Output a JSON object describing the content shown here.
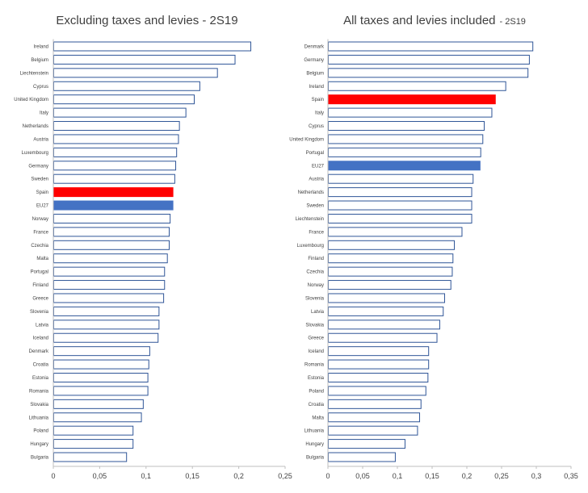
{
  "colors": {
    "default_fill": "#ffffff",
    "default_stroke": "#2f5597",
    "spain_fill": "#ff0000",
    "eu27_fill": "#4472c4",
    "axis": "#bfbfbf",
    "text": "#404040"
  },
  "chart_data": [
    {
      "type": "bar",
      "orientation": "horizontal",
      "title": "Excluding taxes and levies - 2S19",
      "subtitle": "",
      "xlabel": "",
      "ylabel": "",
      "xlim": [
        0,
        0.25
      ],
      "ticks": [
        0,
        0.05,
        0.1,
        0.15,
        0.2,
        0.25
      ],
      "tick_labels": [
        "0",
        "0,05",
        "0,1",
        "0,15",
        "0,2",
        "0,25"
      ],
      "grid": false,
      "highlights": {
        "Spain": "spain_fill",
        "EU27": "eu27_fill"
      },
      "categories": [
        "Ireland",
        "Belgium",
        "Liechtenstein",
        "Cyprus",
        "United Kingdom",
        "Italy",
        "Netherlands",
        "Austria",
        "Luxembourg",
        "Germany",
        "Sweden",
        "Spain",
        "EU27",
        "Norway",
        "France",
        "Czechia",
        "Malta",
        "Portugal",
        "Finland",
        "Greece",
        "Slovenia",
        "Latvia",
        "Iceland",
        "Denmark",
        "Croatia",
        "Estonia",
        "Romania",
        "Slovakia",
        "Lithuania",
        "Poland",
        "Hungary",
        "Bulgaria"
      ],
      "values": [
        0.213,
        0.196,
        0.177,
        0.158,
        0.152,
        0.143,
        0.136,
        0.135,
        0.133,
        0.132,
        0.131,
        0.129,
        0.129,
        0.126,
        0.125,
        0.125,
        0.123,
        0.12,
        0.12,
        0.119,
        0.114,
        0.114,
        0.113,
        0.104,
        0.103,
        0.102,
        0.102,
        0.097,
        0.095,
        0.086,
        0.086,
        0.079
      ]
    },
    {
      "type": "bar",
      "orientation": "horizontal",
      "title": "All taxes and levies included",
      "subtitle": "- 2S19",
      "xlabel": "",
      "ylabel": "",
      "xlim": [
        0,
        0.35
      ],
      "ticks": [
        0,
        0.05,
        0.1,
        0.15,
        0.2,
        0.25,
        0.3,
        0.35
      ],
      "tick_labels": [
        "0",
        "0,05",
        "0,1",
        "0,15",
        "0,2",
        "0,25",
        "0,3",
        "0,35"
      ],
      "grid": false,
      "highlights": {
        "Spain": "spain_fill",
        "EU27": "eu27_fill"
      },
      "categories": [
        "Denmark",
        "Germany",
        "Belgium",
        "Ireland",
        "Spain",
        "Italy",
        "Cyprus",
        "United Kingdom",
        "Portugal",
        "EU27",
        "Austria",
        "Netherlands",
        "Sweden",
        "Liechtenstein",
        "France",
        "Luxembourg",
        "Finland",
        "Czechia",
        "Norway",
        "Slovenia",
        "Latvia",
        "Slovakia",
        "Greece",
        "Iceland",
        "Romania",
        "Estonia",
        "Poland",
        "Croatia",
        "Malta",
        "Lithuania",
        "Hungary",
        "Bulgaria"
      ],
      "values": [
        0.295,
        0.29,
        0.288,
        0.256,
        0.241,
        0.236,
        0.225,
        0.223,
        0.22,
        0.219,
        0.209,
        0.207,
        0.207,
        0.207,
        0.193,
        0.182,
        0.18,
        0.179,
        0.177,
        0.168,
        0.166,
        0.161,
        0.157,
        0.145,
        0.145,
        0.144,
        0.141,
        0.134,
        0.132,
        0.129,
        0.111,
        0.097
      ]
    }
  ]
}
